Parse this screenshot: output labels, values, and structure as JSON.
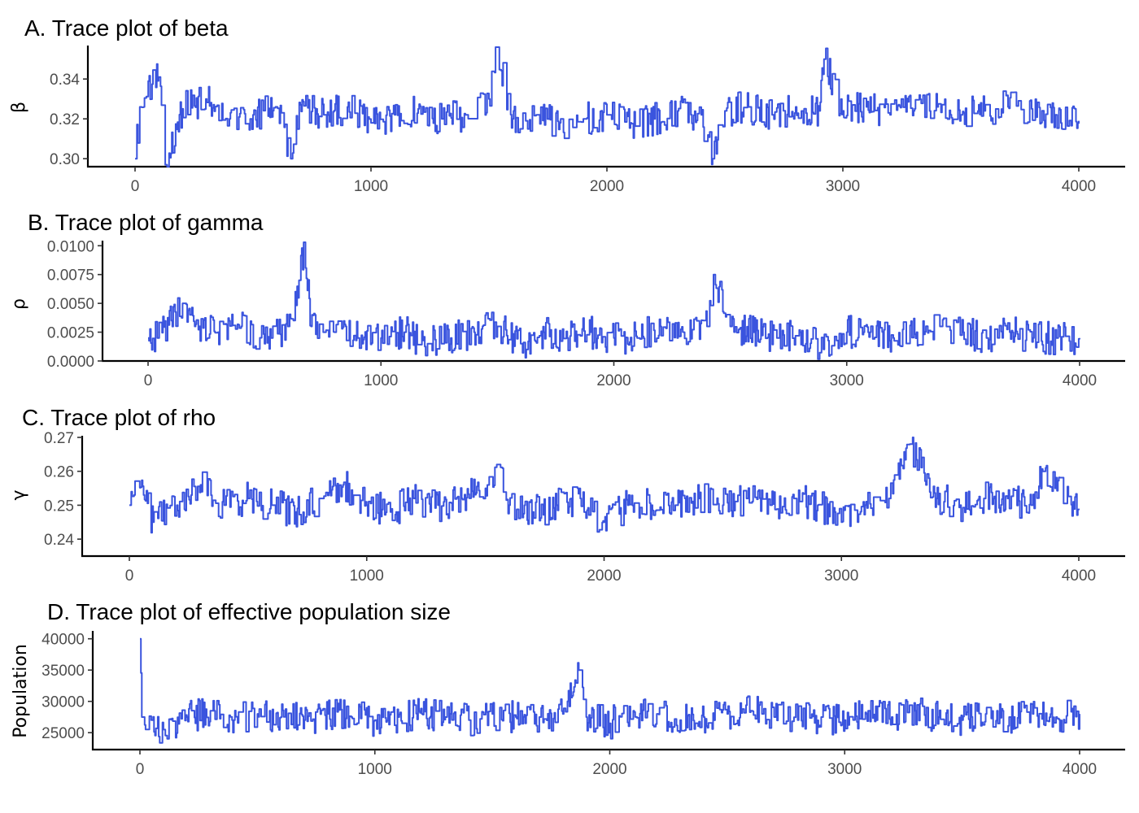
{
  "chart_data": [
    {
      "type": "line",
      "title": "A. Trace plot of beta",
      "ylabel": "β",
      "xlabel": "",
      "xlim": [
        0,
        4000
      ],
      "ylim": [
        0.296,
        0.356
      ],
      "x_ticks": [
        0,
        1000,
        2000,
        3000,
        4000
      ],
      "x_tick_labels": [
        "0",
        "1000",
        "2000",
        "3000",
        "4000"
      ],
      "y_ticks": [
        0.3,
        0.32,
        0.34
      ],
      "y_tick_labels": [
        "0.30",
        "0.32",
        "0.34"
      ],
      "grid": false,
      "color": "#3a54de",
      "series": [
        {
          "x": [
            0,
            20,
            100,
            130,
            200,
            300,
            400,
            500,
            600,
            660,
            700,
            800,
            900,
            1000,
            1100,
            1200,
            1300,
            1400,
            1500,
            1530,
            1600,
            1700,
            1800,
            1900,
            2000,
            2100,
            2200,
            2300,
            2400,
            2450,
            2500,
            2600,
            2700,
            2800,
            2900,
            2920,
            3000,
            3100,
            3200,
            3300,
            3400,
            3500,
            3600,
            3700,
            3800,
            3900,
            4000
          ],
          "values": [
            0.3,
            0.326,
            0.341,
            0.297,
            0.325,
            0.33,
            0.32,
            0.322,
            0.326,
            0.3,
            0.327,
            0.322,
            0.326,
            0.318,
            0.322,
            0.325,
            0.32,
            0.322,
            0.33,
            0.356,
            0.32,
            0.322,
            0.318,
            0.32,
            0.322,
            0.318,
            0.32,
            0.324,
            0.322,
            0.3,
            0.324,
            0.326,
            0.322,
            0.326,
            0.324,
            0.35,
            0.324,
            0.326,
            0.322,
            0.324,
            0.326,
            0.322,
            0.324,
            0.326,
            0.325,
            0.322,
            0.319
          ]
        }
      ]
    },
    {
      "type": "line",
      "title": "B. Trace plot of gamma",
      "ylabel": "ρ",
      "xlabel": "",
      "xlim": [
        0,
        4000
      ],
      "ylim": [
        0,
        0.0103
      ],
      "x_ticks": [
        0,
        1000,
        2000,
        3000,
        4000
      ],
      "x_tick_labels": [
        "0",
        "1000",
        "2000",
        "3000",
        "4000"
      ],
      "y_ticks": [
        0,
        0.0025,
        0.005,
        0.0075,
        0.01
      ],
      "y_tick_labels": [
        "0.0000",
        "0.0025",
        "0.0050",
        "0.0075",
        "0.0100"
      ],
      "grid": false,
      "color": "#3a54de",
      "series": [
        {
          "x": [
            0,
            40,
            100,
            150,
            180,
            200,
            300,
            400,
            500,
            600,
            650,
            670,
            700,
            800,
            900,
            1000,
            1100,
            1200,
            1300,
            1400,
            1500,
            1600,
            1700,
            1800,
            1900,
            2000,
            2100,
            2200,
            2300,
            2400,
            2430,
            2500,
            2600,
            2700,
            2800,
            2900,
            3000,
            3100,
            3200,
            3300,
            3400,
            3500,
            3600,
            3700,
            3800,
            3900,
            4000
          ],
          "values": [
            0.002,
            0.002,
            0.0035,
            0.005,
            0.004,
            0.003,
            0.0025,
            0.003,
            0.0015,
            0.003,
            0.007,
            0.0103,
            0.003,
            0.0025,
            0.002,
            0.002,
            0.0025,
            0.0015,
            0.002,
            0.0025,
            0.003,
            0.0015,
            0.0025,
            0.002,
            0.0025,
            0.002,
            0.002,
            0.003,
            0.0025,
            0.003,
            0.0075,
            0.003,
            0.0025,
            0.002,
            0.0025,
            0.001,
            0.0025,
            0.0025,
            0.002,
            0.0025,
            0.003,
            0.0025,
            0.002,
            0.0025,
            0.002,
            0.002,
            0.002
          ]
        }
      ]
    },
    {
      "type": "line",
      "title": "C. Trace plot of rho",
      "ylabel": "γ",
      "xlabel": "",
      "xlim": [
        0,
        4000
      ],
      "ylim": [
        0.235,
        0.27
      ],
      "x_ticks": [
        0,
        1000,
        2000,
        3000,
        4000
      ],
      "x_tick_labels": [
        "0",
        "1000",
        "2000",
        "3000",
        "4000"
      ],
      "y_ticks": [
        0.24,
        0.25,
        0.26,
        0.27
      ],
      "y_tick_labels": [
        "0.24",
        "0.25",
        "0.26",
        "0.27"
      ],
      "grid": false,
      "color": "#3a54de",
      "series": [
        {
          "x": [
            0,
            20,
            60,
            100,
            200,
            300,
            400,
            500,
            600,
            700,
            800,
            900,
            1000,
            1100,
            1200,
            1300,
            1400,
            1500,
            1550,
            1600,
            1700,
            1800,
            1900,
            2000,
            2100,
            2200,
            2300,
            2400,
            2500,
            2600,
            2700,
            2800,
            2900,
            3000,
            3100,
            3200,
            3290,
            3400,
            3500,
            3600,
            3700,
            3800,
            3850,
            3900,
            4000
          ],
          "values": [
            0.25,
            0.253,
            0.253,
            0.245,
            0.25,
            0.256,
            0.25,
            0.252,
            0.25,
            0.248,
            0.252,
            0.256,
            0.25,
            0.248,
            0.252,
            0.25,
            0.252,
            0.255,
            0.262,
            0.25,
            0.248,
            0.25,
            0.252,
            0.245,
            0.25,
            0.25,
            0.25,
            0.252,
            0.25,
            0.252,
            0.25,
            0.252,
            0.25,
            0.245,
            0.25,
            0.252,
            0.268,
            0.252,
            0.25,
            0.252,
            0.252,
            0.25,
            0.26,
            0.255,
            0.249
          ]
        }
      ]
    },
    {
      "type": "line",
      "title": "D. Trace plot of effective population size",
      "ylabel": "Population",
      "xlabel": "",
      "xlim": [
        0,
        4000
      ],
      "ylim": [
        22300,
        41000
      ],
      "x_ticks": [
        0,
        1000,
        2000,
        3000,
        4000
      ],
      "x_tick_labels": [
        "0",
        "1000",
        "2000",
        "3000",
        "4000"
      ],
      "y_ticks": [
        25000,
        30000,
        35000,
        40000
      ],
      "y_tick_labels": [
        "25000",
        "30000",
        "35000",
        "40000"
      ],
      "grid": false,
      "color": "#3a54de",
      "series": [
        {
          "x": [
            0,
            10,
            50,
            100,
            200,
            300,
            400,
            500,
            600,
            700,
            800,
            900,
            1000,
            1100,
            1200,
            1300,
            1400,
            1500,
            1600,
            1700,
            1800,
            1870,
            1900,
            2000,
            2100,
            2200,
            2300,
            2400,
            2500,
            2600,
            2700,
            2800,
            2900,
            3000,
            3100,
            3200,
            3300,
            3400,
            3500,
            3600,
            3700,
            3800,
            3900,
            4000
          ],
          "values": [
            40000,
            27500,
            27000,
            25500,
            27500,
            28500,
            27000,
            28000,
            27500,
            27000,
            28000,
            27500,
            27000,
            27500,
            28000,
            27500,
            27000,
            28000,
            27500,
            27500,
            28000,
            35000,
            27500,
            26500,
            28500,
            28000,
            27000,
            27500,
            28000,
            28500,
            27500,
            27000,
            27500,
            27000,
            28500,
            27500,
            28500,
            27500,
            27000,
            28000,
            27500,
            28000,
            27500,
            28000
          ]
        }
      ]
    }
  ]
}
